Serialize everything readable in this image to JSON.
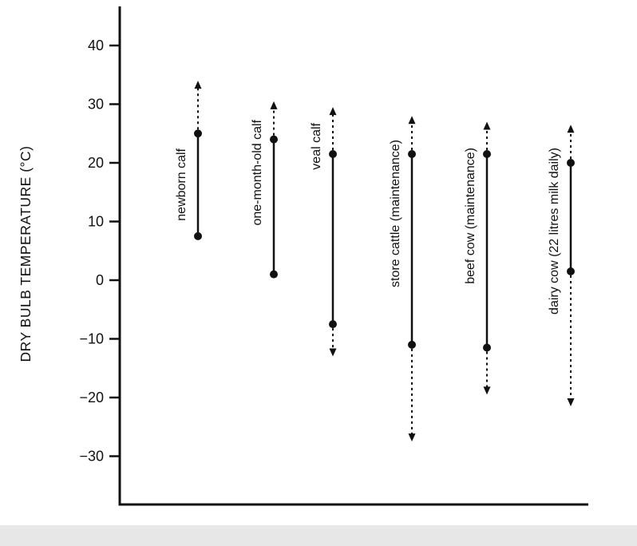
{
  "chart_data": {
    "type": "scatter",
    "subtype": "vertical-range-dot-plot",
    "title": "",
    "xlabel": "",
    "ylabel": "DRY BULB TEMPERATURE (°C)",
    "units": "°C",
    "ylim": [
      -33,
      43
    ],
    "grid": false,
    "legend": "none",
    "yticks": [
      {
        "value": 40,
        "label": "40"
      },
      {
        "value": 30,
        "label": "30"
      },
      {
        "value": 20,
        "label": "20"
      },
      {
        "value": 10,
        "label": "10"
      },
      {
        "value": 0,
        "label": "0"
      },
      {
        "value": -10,
        "label": "−10"
      },
      {
        "value": -20,
        "label": "−20"
      },
      {
        "value": -30,
        "label": "−30"
      }
    ],
    "series_note": "solid = [lower, upper] comfort range marked by dots; dashed_top / dashed_bottom = tolerable extremes shown by dashed arrows",
    "series": [
      {
        "label": "newborn calf",
        "solid": [
          7.5,
          25
        ],
        "dashed_top": 34,
        "dashed_bottom": null
      },
      {
        "label": "one-month-old calf",
        "solid": [
          1,
          24
        ],
        "dashed_top": 30.5,
        "dashed_bottom": null
      },
      {
        "label": "veal calf",
        "solid": [
          -7.5,
          21.5
        ],
        "dashed_top": 29.5,
        "dashed_bottom": -13
      },
      {
        "label": "store cattle (maintenance)",
        "solid": [
          -11,
          21.5
        ],
        "dashed_top": 28,
        "dashed_bottom": -27.5
      },
      {
        "label": "beef cow (maintenance)",
        "solid": [
          -11.5,
          21.5
        ],
        "dashed_top": 27,
        "dashed_bottom": -19.5
      },
      {
        "label": "dairy cow (22 litres milk daily)",
        "solid": [
          1.5,
          20
        ],
        "dashed_top": 26.5,
        "dashed_bottom": -21.5
      }
    ],
    "colors": {
      "ink": "#111111",
      "background": "#ffffff",
      "footer_strip": "#e7e7e7"
    }
  }
}
